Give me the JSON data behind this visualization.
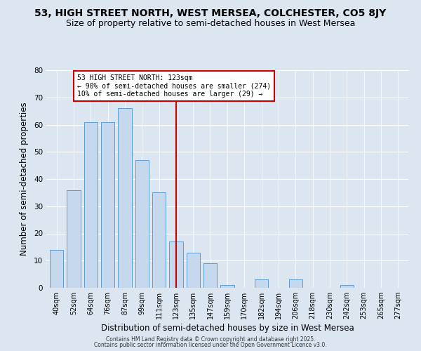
{
  "title": "53, HIGH STREET NORTH, WEST MERSEA, COLCHESTER, CO5 8JY",
  "subtitle": "Size of property relative to semi-detached houses in West Mersea",
  "xlabel": "Distribution of semi-detached houses by size in West Mersea",
  "ylabel": "Number of semi-detached properties",
  "categories": [
    "40sqm",
    "52sqm",
    "64sqm",
    "76sqm",
    "87sqm",
    "99sqm",
    "111sqm",
    "123sqm",
    "135sqm",
    "147sqm",
    "159sqm",
    "170sqm",
    "182sqm",
    "194sqm",
    "206sqm",
    "218sqm",
    "230sqm",
    "242sqm",
    "253sqm",
    "265sqm",
    "277sqm"
  ],
  "values": [
    14,
    36,
    61,
    61,
    66,
    47,
    35,
    17,
    13,
    9,
    1,
    0,
    3,
    0,
    3,
    0,
    0,
    1,
    0,
    0,
    0
  ],
  "bar_color": "#c5d8ed",
  "bar_edge_color": "#5b9bd5",
  "vline_x_index": 7,
  "vline_color": "#cc0000",
  "annotation_line1": "53 HIGH STREET NORTH: 123sqm",
  "annotation_line2": "← 90% of semi-detached houses are smaller (274)",
  "annotation_line3": "10% of semi-detached houses are larger (29) →",
  "annotation_box_color": "white",
  "annotation_box_edge": "#cc0000",
  "ylim": [
    0,
    80
  ],
  "yticks": [
    0,
    10,
    20,
    30,
    40,
    50,
    60,
    70,
    80
  ],
  "background_color": "#dce6f0",
  "plot_bg_color": "#dce6f0",
  "footer1": "Contains HM Land Registry data © Crown copyright and database right 2025.",
  "footer2": "Contains public sector information licensed under the Open Government Licence v3.0.",
  "title_fontsize": 10,
  "subtitle_fontsize": 9,
  "xlabel_fontsize": 8.5,
  "ylabel_fontsize": 8.5
}
